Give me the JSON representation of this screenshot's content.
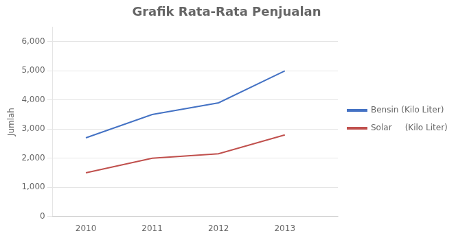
{
  "chart_data": {
    "type": "line",
    "title": "Grafik Rata-Rata Penjualan",
    "ylabel": "Jumlah",
    "x": [
      2010,
      2011,
      2012,
      2013
    ],
    "series": [
      {
        "name": "Bensin (Kilo Liter)",
        "color": "#4472C4",
        "values": [
          2700,
          3500,
          3900,
          5000
        ]
      },
      {
        "name": "Solar     (Kilo Liter)",
        "color": "#C0504D",
        "values": [
          1500,
          2000,
          2150,
          2800
        ]
      }
    ],
    "xlim": [
      2009.5,
      2013.8
    ],
    "xticks": [
      2010,
      2011,
      2012,
      2013
    ],
    "ylim": [
      0,
      6500
    ],
    "yticks": [
      0,
      {
        "value": 1000,
        "label": "1,000"
      },
      {
        "value": 2000,
        "label": "2,000"
      },
      {
        "value": 3000,
        "label": "3,000"
      },
      {
        "value": 4000,
        "label": "4,000"
      },
      {
        "value": 5000,
        "label": "5,000"
      },
      {
        "value": 6000,
        "label": "6,000"
      }
    ],
    "grid": "y",
    "legend": "right"
  }
}
